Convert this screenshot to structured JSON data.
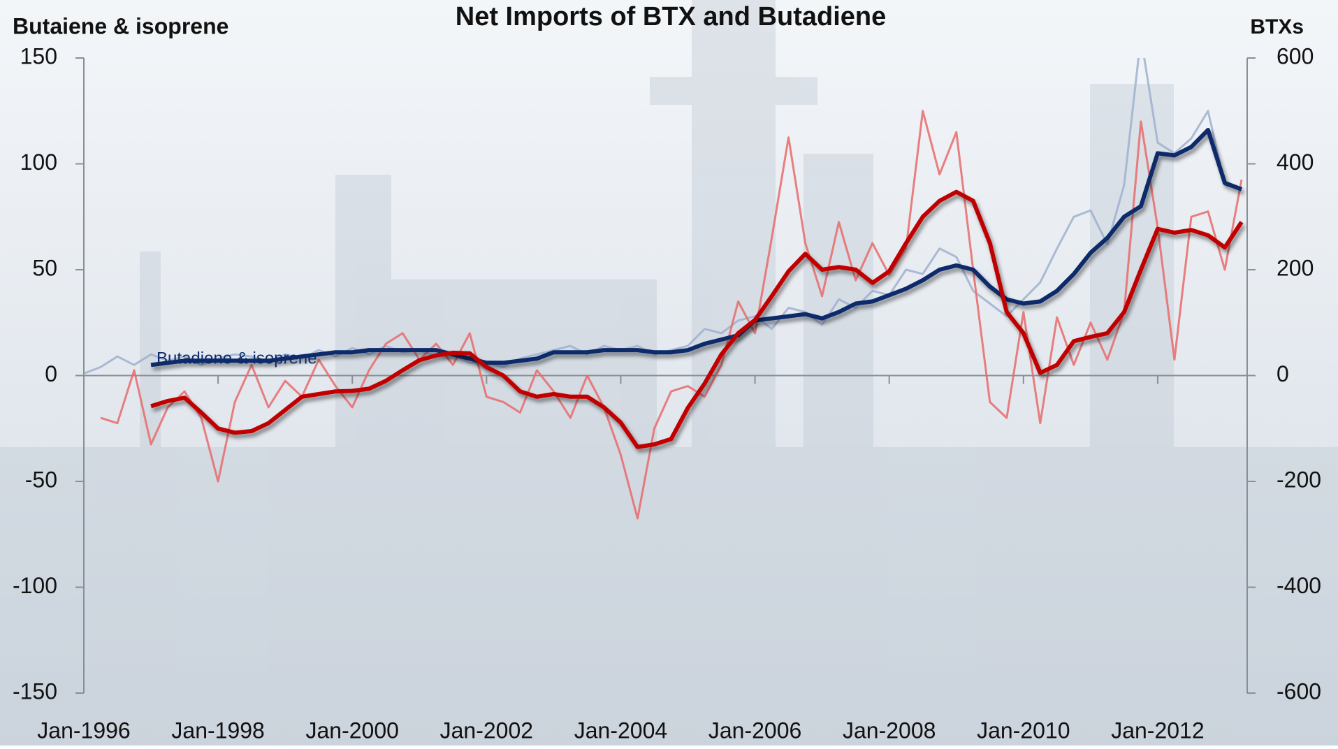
{
  "chart_data": {
    "type": "line",
    "title": "Net Imports of BTX and Butadiene",
    "y_label": "Butaiene & isoprene",
    "y2_label": "BTXs",
    "annotation": "Butadiene & isoprene",
    "x": [
      "Jan-1996",
      "Apr-1996",
      "Jul-1996",
      "Oct-1996",
      "Jan-1997",
      "Apr-1997",
      "Jul-1997",
      "Oct-1997",
      "Jan-1998",
      "Apr-1998",
      "Jul-1998",
      "Oct-1998",
      "Jan-1999",
      "Apr-1999",
      "Jul-1999",
      "Oct-1999",
      "Jan-2000",
      "Apr-2000",
      "Jul-2000",
      "Oct-2000",
      "Jan-2001",
      "Apr-2001",
      "Jul-2001",
      "Oct-2001",
      "Jan-2002",
      "Apr-2002",
      "Jul-2002",
      "Oct-2002",
      "Jan-2003",
      "Apr-2003",
      "Jul-2003",
      "Oct-2003",
      "Jan-2004",
      "Apr-2004",
      "Jul-2004",
      "Oct-2004",
      "Jan-2005",
      "Apr-2005",
      "Jul-2005",
      "Oct-2005",
      "Jan-2006",
      "Apr-2006",
      "Jul-2006",
      "Oct-2006",
      "Jan-2007",
      "Apr-2007",
      "Jul-2007",
      "Oct-2007",
      "Jan-2008",
      "Apr-2008",
      "Jul-2008",
      "Oct-2008",
      "Jan-2009",
      "Apr-2009",
      "Jul-2009",
      "Oct-2009",
      "Jan-2010",
      "Apr-2010",
      "Jul-2010",
      "Oct-2010",
      "Jan-2011",
      "Apr-2011",
      "Jul-2011",
      "Oct-2011",
      "Jan-2012",
      "Apr-2012",
      "Jul-2012",
      "Oct-2012",
      "Jan-2013",
      "Apr-2013"
    ],
    "xlim": [
      "Jan-1996",
      "May-2013"
    ],
    "xticks": [
      "Jan-1996",
      "Jan-1998",
      "Jan-2000",
      "Jan-2002",
      "Jan-2004",
      "Jan-2006",
      "Jan-2008",
      "Jan-2010",
      "Jan-2012"
    ],
    "ylim": [
      -150,
      150
    ],
    "yticks": [
      -150,
      -100,
      -50,
      0,
      50,
      100,
      150
    ],
    "y2lim": [
      -600,
      600
    ],
    "y2ticks": [
      -600,
      -400,
      -200,
      0,
      200,
      400,
      600
    ],
    "series": [
      {
        "color": "#9fb0cf",
        "axis": "y",
        "values": [
          1,
          4,
          9,
          5,
          10,
          7,
          9,
          5,
          8,
          10,
          9,
          6,
          10,
          8,
          12,
          9,
          13,
          10,
          14,
          11,
          12,
          9,
          10,
          6,
          6,
          4,
          8,
          10,
          12,
          14,
          10,
          14,
          12,
          14,
          10,
          12,
          14,
          22,
          20,
          26,
          28,
          22,
          32,
          30,
          24,
          36,
          32,
          40,
          38,
          50,
          48,
          60,
          56,
          40,
          34,
          28,
          36,
          44,
          60,
          75,
          78,
          62,
          90,
          160,
          110,
          105,
          112,
          125,
          90,
          88
        ]
      },
      {
        "color": "#e86a6a",
        "axis": "y2",
        "values": [
          null,
          -80,
          -90,
          10,
          -130,
          -60,
          -30,
          -80,
          -200,
          -50,
          20,
          -60,
          -10,
          -40,
          30,
          -20,
          -60,
          10,
          60,
          80,
          30,
          60,
          20,
          80,
          -40,
          -50,
          -70,
          10,
          -30,
          -80,
          0,
          -60,
          -150,
          -270,
          -100,
          -30,
          -20,
          -40,
          20,
          140,
          80,
          260,
          450,
          250,
          150,
          290,
          180,
          250,
          190,
          240,
          500,
          380,
          460,
          200,
          -50,
          -80,
          120,
          -90,
          110,
          20,
          100,
          30,
          120,
          480,
          280,
          30,
          300,
          310,
          200,
          370
        ]
      },
      {
        "color": "#0d2a6b",
        "axis": "y",
        "values": [
          null,
          null,
          null,
          null,
          5,
          6,
          7,
          7,
          7,
          7,
          7,
          7,
          8,
          9,
          10,
          11,
          11,
          12,
          12,
          12,
          12,
          12,
          10,
          8,
          6,
          6,
          7,
          8,
          11,
          11,
          11,
          12,
          12,
          12,
          11,
          11,
          12,
          15,
          17,
          19,
          26,
          27,
          28,
          29,
          27,
          30,
          34,
          35,
          38,
          41,
          45,
          50,
          52,
          50,
          42,
          36,
          34,
          35,
          40,
          48,
          58,
          65,
          75,
          80,
          105,
          104,
          108,
          116,
          91,
          88
        ]
      },
      {
        "color": "#c00000",
        "axis": "y2",
        "values": [
          null,
          null,
          null,
          null,
          -58,
          -48,
          -42,
          -70,
          -100,
          -108,
          -105,
          -90,
          -65,
          -40,
          -35,
          -30,
          -29,
          -25,
          -10,
          10,
          29,
          38,
          43,
          42,
          16,
          0,
          -30,
          -40,
          -35,
          -40,
          -40,
          -60,
          -89,
          -135,
          -130,
          -120,
          -61,
          -15,
          40,
          80,
          105,
          150,
          197,
          230,
          200,
          205,
          200,
          175,
          197,
          250,
          300,
          330,
          347,
          330,
          250,
          120,
          80,
          5,
          20,
          65,
          73,
          80,
          120,
          200,
          277,
          270,
          275,
          265,
          242,
          290
        ]
      }
    ]
  }
}
